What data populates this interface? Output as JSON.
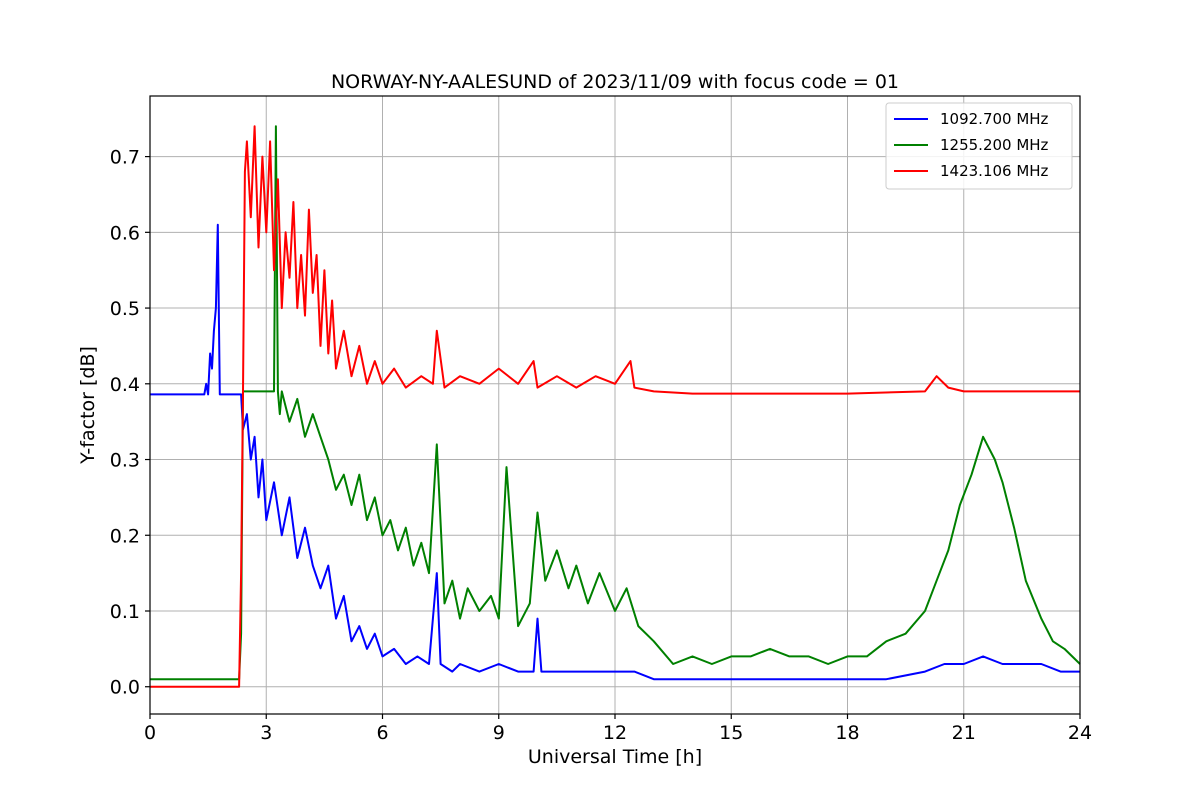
{
  "chart_data": {
    "type": "line",
    "title": "NORWAY-NY-AALESUND of 2023/11/09 with focus code = 01",
    "xlabel": "Universal Time [h]",
    "ylabel": "Y-factor [dB]",
    "xlim": [
      0,
      24
    ],
    "ylim": [
      -0.036,
      0.78
    ],
    "xticks": [
      0,
      3,
      6,
      9,
      12,
      15,
      18,
      21,
      24
    ],
    "yticks": [
      0.0,
      0.1,
      0.2,
      0.3,
      0.4,
      0.5,
      0.6,
      0.7
    ],
    "ytick_labels": [
      "0.0",
      "0.1",
      "0.2",
      "0.3",
      "0.4",
      "0.5",
      "0.6",
      "0.7"
    ],
    "grid": true,
    "legend_position": "top-right",
    "series": [
      {
        "name": "1092.700 MHz",
        "color": "#0000ff",
        "x": [
          0,
          1.4,
          1.45,
          1.5,
          1.55,
          1.6,
          1.65,
          1.7,
          1.75,
          1.8,
          1.9,
          2.0,
          2.1,
          2.2,
          2.3,
          2.35,
          2.4,
          2.5,
          2.6,
          2.7,
          2.8,
          2.9,
          3.0,
          3.2,
          3.4,
          3.6,
          3.8,
          4.0,
          4.2,
          4.4,
          4.6,
          4.8,
          5.0,
          5.2,
          5.4,
          5.6,
          5.8,
          6.0,
          6.3,
          6.6,
          6.9,
          7.2,
          7.4,
          7.5,
          7.8,
          8.0,
          8.5,
          9.0,
          9.5,
          9.9,
          10.0,
          10.1,
          10.5,
          11.0,
          11.5,
          12.0,
          12.5,
          13.0,
          13.5,
          14.0,
          15.0,
          16.0,
          17.0,
          18.0,
          19.0,
          20.0,
          20.5,
          21.0,
          21.5,
          22.0,
          22.5,
          23.0,
          23.5,
          24.0
        ],
        "y": [
          0.386,
          0.386,
          0.4,
          0.386,
          0.44,
          0.42,
          0.47,
          0.5,
          0.61,
          0.386,
          0.386,
          0.386,
          0.386,
          0.386,
          0.386,
          0.386,
          0.34,
          0.36,
          0.3,
          0.33,
          0.25,
          0.3,
          0.22,
          0.27,
          0.2,
          0.25,
          0.17,
          0.21,
          0.16,
          0.13,
          0.16,
          0.09,
          0.12,
          0.06,
          0.08,
          0.05,
          0.07,
          0.04,
          0.05,
          0.03,
          0.04,
          0.03,
          0.15,
          0.03,
          0.02,
          0.03,
          0.02,
          0.03,
          0.02,
          0.02,
          0.09,
          0.02,
          0.02,
          0.02,
          0.02,
          0.02,
          0.02,
          0.01,
          0.01,
          0.01,
          0.01,
          0.01,
          0.01,
          0.01,
          0.01,
          0.02,
          0.03,
          0.03,
          0.04,
          0.03,
          0.03,
          0.03,
          0.02,
          0.02
        ]
      },
      {
        "name": "1255.200 MHz",
        "color": "#008000",
        "x": [
          0,
          2.3,
          2.35,
          2.4,
          2.5,
          2.8,
          3.0,
          3.2,
          3.25,
          3.3,
          3.35,
          3.4,
          3.6,
          3.8,
          4.0,
          4.2,
          4.4,
          4.6,
          4.8,
          5.0,
          5.2,
          5.4,
          5.6,
          5.8,
          6.0,
          6.2,
          6.4,
          6.6,
          6.8,
          7.0,
          7.2,
          7.4,
          7.6,
          7.8,
          8.0,
          8.2,
          8.5,
          8.8,
          9.0,
          9.2,
          9.5,
          9.8,
          10.0,
          10.2,
          10.5,
          10.8,
          11.0,
          11.3,
          11.6,
          12.0,
          12.3,
          12.6,
          13.0,
          13.5,
          14.0,
          14.5,
          15.0,
          15.5,
          16.0,
          16.5,
          17.0,
          17.5,
          18.0,
          18.5,
          19.0,
          19.5,
          20.0,
          20.3,
          20.6,
          20.9,
          21.2,
          21.5,
          21.8,
          22.0,
          22.3,
          22.6,
          23.0,
          23.3,
          23.6,
          24.0
        ],
        "y": [
          0.01,
          0.01,
          0.07,
          0.39,
          0.39,
          0.39,
          0.39,
          0.39,
          0.74,
          0.39,
          0.36,
          0.39,
          0.35,
          0.38,
          0.33,
          0.36,
          0.33,
          0.3,
          0.26,
          0.28,
          0.24,
          0.28,
          0.22,
          0.25,
          0.2,
          0.22,
          0.18,
          0.21,
          0.16,
          0.19,
          0.15,
          0.32,
          0.11,
          0.14,
          0.09,
          0.13,
          0.1,
          0.12,
          0.09,
          0.29,
          0.08,
          0.11,
          0.23,
          0.14,
          0.18,
          0.13,
          0.16,
          0.11,
          0.15,
          0.1,
          0.13,
          0.08,
          0.06,
          0.03,
          0.04,
          0.03,
          0.04,
          0.04,
          0.05,
          0.04,
          0.04,
          0.03,
          0.04,
          0.04,
          0.06,
          0.07,
          0.1,
          0.14,
          0.18,
          0.24,
          0.28,
          0.33,
          0.3,
          0.27,
          0.21,
          0.14,
          0.09,
          0.06,
          0.05,
          0.03
        ]
      },
      {
        "name": "1423.106 MHz",
        "color": "#ff0000",
        "x": [
          0,
          2.3,
          2.35,
          2.4,
          2.45,
          2.5,
          2.6,
          2.7,
          2.8,
          2.9,
          3.0,
          3.1,
          3.2,
          3.3,
          3.4,
          3.5,
          3.6,
          3.7,
          3.8,
          3.9,
          4.0,
          4.1,
          4.2,
          4.3,
          4.4,
          4.5,
          4.6,
          4.7,
          4.8,
          5.0,
          5.2,
          5.4,
          5.6,
          5.8,
          6.0,
          6.3,
          6.6,
          7.0,
          7.3,
          7.4,
          7.6,
          8.0,
          8.5,
          9.0,
          9.5,
          9.9,
          10.0,
          10.5,
          11.0,
          11.5,
          12.0,
          12.4,
          12.5,
          13.0,
          14.0,
          15.0,
          18.0,
          20.0,
          20.3,
          20.6,
          21.0,
          22.0,
          23.0,
          24.0
        ],
        "y": [
          0.0,
          0.0,
          0.15,
          0.39,
          0.68,
          0.72,
          0.62,
          0.74,
          0.58,
          0.7,
          0.6,
          0.72,
          0.55,
          0.67,
          0.5,
          0.6,
          0.54,
          0.64,
          0.5,
          0.57,
          0.49,
          0.63,
          0.52,
          0.57,
          0.45,
          0.55,
          0.44,
          0.51,
          0.42,
          0.47,
          0.41,
          0.45,
          0.4,
          0.43,
          0.4,
          0.42,
          0.395,
          0.41,
          0.4,
          0.47,
          0.395,
          0.41,
          0.4,
          0.42,
          0.4,
          0.43,
          0.395,
          0.41,
          0.395,
          0.41,
          0.4,
          0.43,
          0.395,
          0.39,
          0.387,
          0.387,
          0.387,
          0.39,
          0.41,
          0.395,
          0.39,
          0.39,
          0.39,
          0.39
        ]
      }
    ]
  }
}
